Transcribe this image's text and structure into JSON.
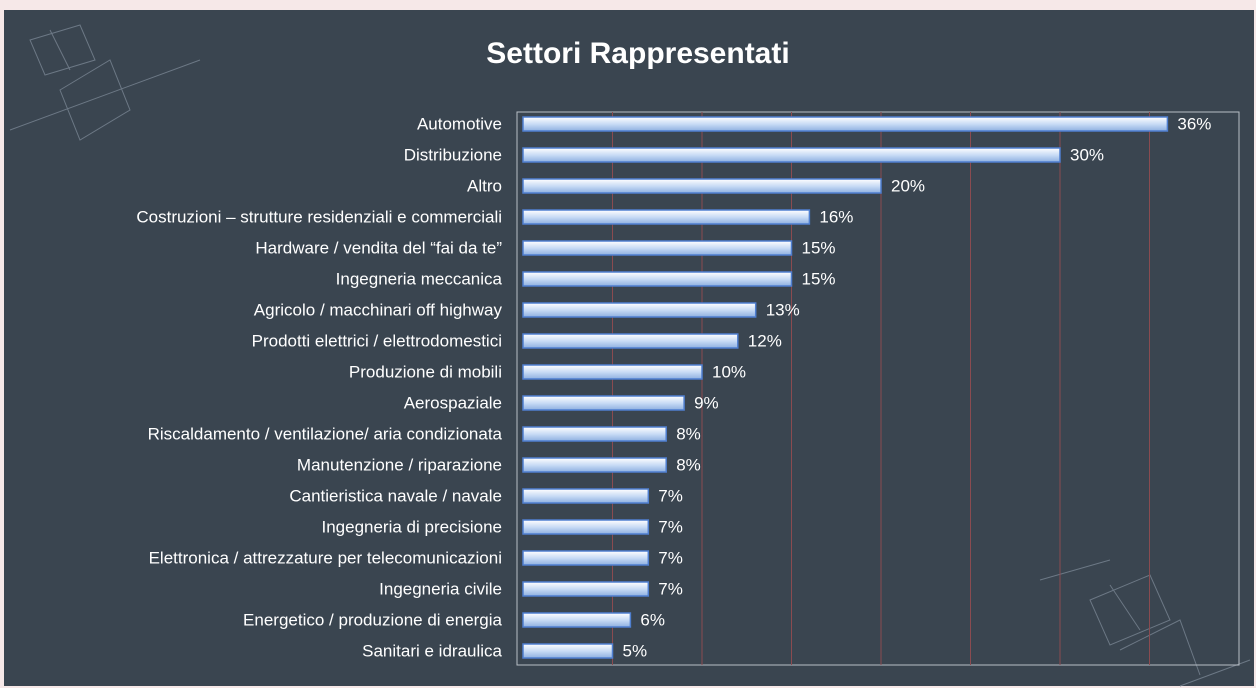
{
  "chart_data": {
    "type": "hbar",
    "title": "Settori Rappresentati",
    "categories": [
      "Automotive",
      "Distribuzione",
      "Altro",
      "Costruzioni – strutture residenziali e commerciali",
      "Hardware / vendita del “fai da te”",
      "Ingegneria meccanica",
      "Agricolo / macchinari off highway",
      "Prodotti elettrici / elettrodomestici",
      "Produzione di mobili",
      "Aerospaziale",
      "Riscaldamento / ventilazione/ aria condizionata",
      "Manutenzione / riparazione",
      "Cantieristica navale / navale",
      "Ingegneria di precisione",
      "Elettronica / attrezzature per telecomunicazioni",
      "Ingegneria civile",
      "Energetico / produzione di energia",
      "Sanitari e idraulica"
    ],
    "values": [
      36,
      30,
      20,
      16,
      15,
      15,
      13,
      12,
      10,
      9,
      8,
      8,
      7,
      7,
      7,
      7,
      6,
      5
    ],
    "value_labels": [
      "36%",
      "30%",
      "20%",
      "16%",
      "15%",
      "15%",
      "13%",
      "12%",
      "10%",
      "9%",
      "8%",
      "8%",
      "7%",
      "7%",
      "7%",
      "7%",
      "6%",
      "5%"
    ],
    "color": "#c9dcf5",
    "xlim": [
      0,
      40
    ],
    "xticks": [
      0,
      5,
      10,
      15,
      20,
      25,
      30,
      35,
      40
    ],
    "grid": true
  }
}
